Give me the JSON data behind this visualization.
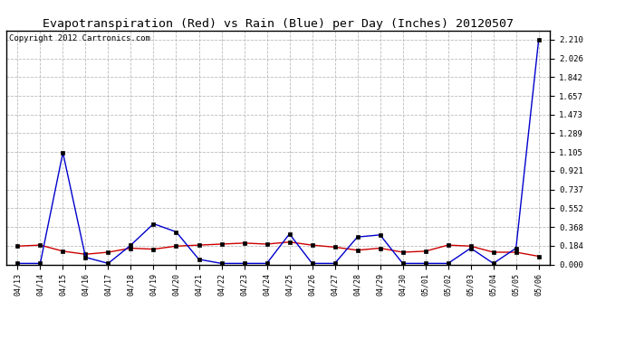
{
  "title": "Evapotranspiration (Red) vs Rain (Blue) per Day (Inches) 20120507",
  "copyright": "Copyright 2012 Cartronics.com",
  "x_labels": [
    "04/13",
    "04/14",
    "04/15",
    "04/16",
    "04/17",
    "04/18",
    "04/19",
    "04/20",
    "04/21",
    "04/22",
    "04/23",
    "04/24",
    "04/25",
    "04/26",
    "04/27",
    "04/28",
    "04/29",
    "04/30",
    "05/01",
    "05/02",
    "05/03",
    "05/04",
    "05/05",
    "05/06"
  ],
  "et_red": [
    0.18,
    0.19,
    0.13,
    0.1,
    0.12,
    0.16,
    0.15,
    0.18,
    0.19,
    0.2,
    0.21,
    0.2,
    0.22,
    0.19,
    0.17,
    0.14,
    0.16,
    0.12,
    0.13,
    0.19,
    0.18,
    0.12,
    0.12,
    0.08
  ],
  "rain_blue": [
    0.01,
    0.01,
    1.1,
    0.07,
    0.01,
    0.19,
    0.4,
    0.32,
    0.05,
    0.01,
    0.01,
    0.01,
    0.3,
    0.01,
    0.01,
    0.27,
    0.29,
    0.01,
    0.01,
    0.01,
    0.16,
    0.01,
    0.16,
    2.21
  ],
  "y_ticks": [
    0.0,
    0.184,
    0.368,
    0.552,
    0.737,
    0.921,
    1.105,
    1.289,
    1.473,
    1.657,
    1.842,
    2.026,
    2.21
  ],
  "ylim": [
    0.0,
    2.3
  ],
  "background_color": "#ffffff",
  "grid_color": "#bbbbbb",
  "plot_bg_color": "#ffffff",
  "red_color": "#cc0000",
  "blue_color": "#0000cc",
  "title_fontsize": 9.5,
  "copyright_fontsize": 6.5
}
